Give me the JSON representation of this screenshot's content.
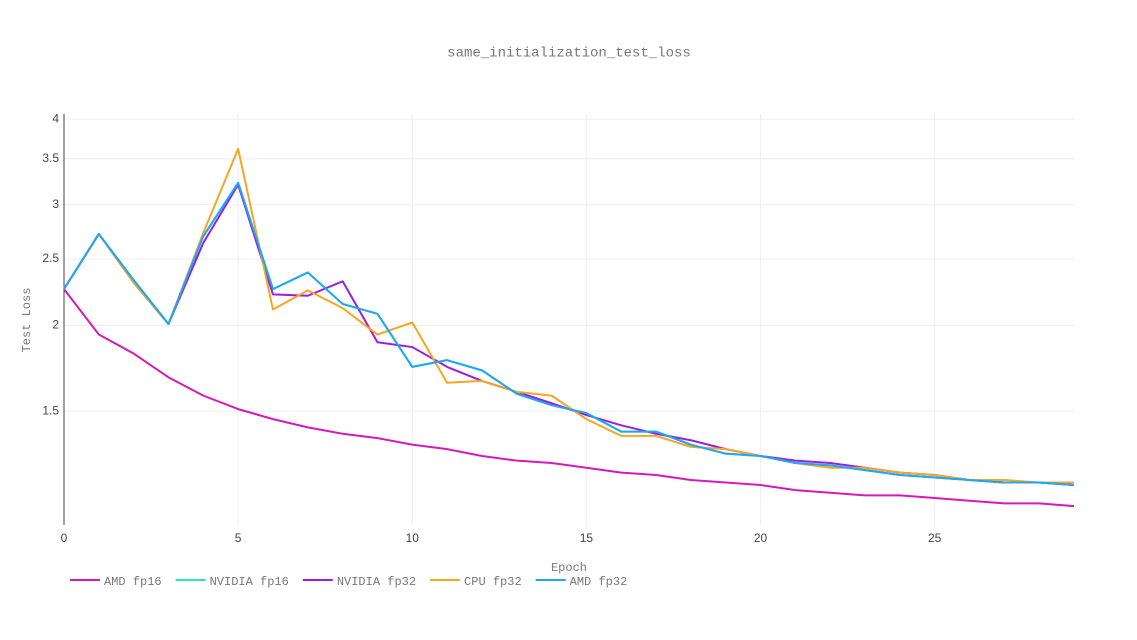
{
  "chart_data": {
    "type": "line",
    "title": "same_initialization_test_loss",
    "x_label": "Epoch",
    "y_label": "Test Loss",
    "x": [
      0,
      1,
      2,
      3,
      4,
      5,
      6,
      7,
      8,
      9,
      10,
      11,
      12,
      13,
      14,
      15,
      16,
      17,
      18,
      19,
      20,
      21,
      22,
      23,
      24,
      25,
      26,
      27,
      28,
      29
    ],
    "xlim": [
      0,
      29
    ],
    "xticks": [
      0,
      5,
      10,
      15,
      20,
      25
    ],
    "ylim": [
      1.023,
      4.07
    ],
    "yticks": [
      1.5,
      2,
      2.5,
      3,
      3.5,
      4
    ],
    "y_scale": "log",
    "grid": true,
    "legend": "bottom",
    "series": [
      {
        "name": "AMD fp16",
        "color": "#d41bb8",
        "values": [
          2.26,
          1.94,
          1.82,
          1.68,
          1.58,
          1.51,
          1.46,
          1.42,
          1.39,
          1.37,
          1.34,
          1.32,
          1.29,
          1.27,
          1.26,
          1.24,
          1.22,
          1.21,
          1.19,
          1.18,
          1.17,
          1.15,
          1.14,
          1.13,
          1.13,
          1.12,
          1.11,
          1.1,
          1.1,
          1.09
        ]
      },
      {
        "name": "NVIDIA fp16",
        "color": "#2de8b0",
        "values": [
          2.26,
          2.72,
          2.33,
          2.01,
          2.7,
          3.23,
          2.26,
          2.39,
          2.15,
          2.08,
          1.74,
          1.78,
          1.72,
          1.59,
          1.53,
          1.49,
          1.4,
          1.4,
          1.34,
          1.3,
          1.29,
          1.26,
          1.25,
          1.23,
          1.21,
          1.2,
          1.19,
          1.18,
          1.18,
          1.17
        ]
      },
      {
        "name": "NVIDIA fp32",
        "color": "#9b1de0",
        "values": [
          2.26,
          2.72,
          2.31,
          2.01,
          2.64,
          3.21,
          2.22,
          2.21,
          2.32,
          1.89,
          1.86,
          1.74,
          1.66,
          1.6,
          1.54,
          1.48,
          1.43,
          1.39,
          1.36,
          1.32,
          1.29,
          1.27,
          1.26,
          1.24,
          1.22,
          1.21,
          1.19,
          1.18,
          1.18,
          1.17
        ]
      },
      {
        "name": "CPU fp32",
        "color": "#f5a623",
        "values": [
          2.26,
          2.72,
          2.31,
          2.01,
          2.73,
          3.62,
          2.11,
          2.25,
          2.12,
          1.94,
          2.02,
          1.65,
          1.66,
          1.6,
          1.58,
          1.46,
          1.38,
          1.38,
          1.33,
          1.32,
          1.29,
          1.26,
          1.24,
          1.24,
          1.22,
          1.21,
          1.19,
          1.19,
          1.18,
          1.18
        ]
      },
      {
        "name": "AMD fp32",
        "color": "#1ea7f5",
        "values": [
          2.26,
          2.72,
          2.33,
          2.01,
          2.7,
          3.23,
          2.26,
          2.39,
          2.15,
          2.08,
          1.74,
          1.78,
          1.72,
          1.59,
          1.53,
          1.49,
          1.4,
          1.4,
          1.34,
          1.3,
          1.29,
          1.26,
          1.25,
          1.23,
          1.21,
          1.2,
          1.19,
          1.18,
          1.18,
          1.17
        ]
      }
    ]
  }
}
